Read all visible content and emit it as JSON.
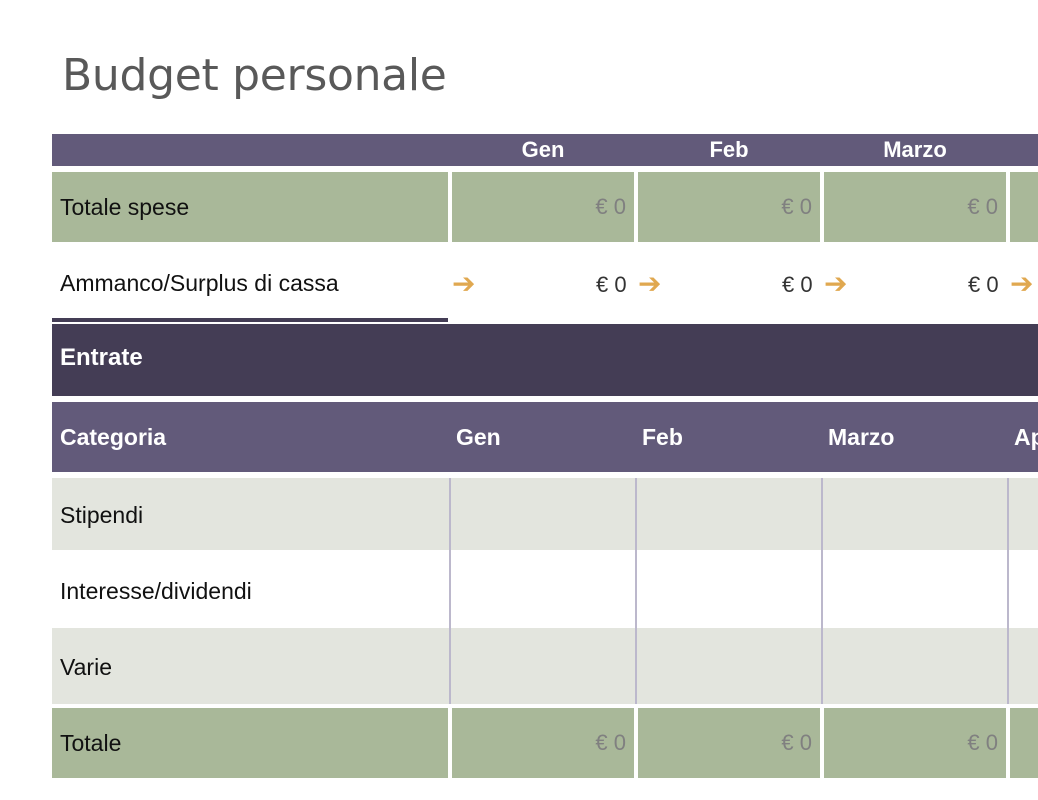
{
  "title": "Budget personale",
  "summary": {
    "months": [
      "Gen",
      "Feb",
      "Marzo"
    ],
    "totale_spese": {
      "label": "Totale spese",
      "values": [
        "€ 0",
        "€ 0",
        "€ 0"
      ]
    },
    "cash": {
      "label": "Ammanco/Surplus di cassa",
      "values": [
        "€ 0",
        "€ 0",
        "€ 0"
      ],
      "arrow": "➔"
    }
  },
  "entrate": {
    "section_label": "Entrate",
    "headers": [
      "Categoria",
      "Gen",
      "Feb",
      "Marzo",
      "Ap"
    ],
    "rows": [
      {
        "label": "Stipendi"
      },
      {
        "label": "Interesse/dividendi"
      },
      {
        "label": "Varie"
      }
    ],
    "total": {
      "label": "Totale",
      "values": [
        "€ 0",
        "€ 0",
        "€ 0"
      ]
    }
  },
  "colors": {
    "header_purple": "#625a7a",
    "section_dark": "#443d55",
    "total_green": "#a9b899",
    "row_grey": "#e3e5de",
    "arrow_gold": "#e0a850"
  }
}
